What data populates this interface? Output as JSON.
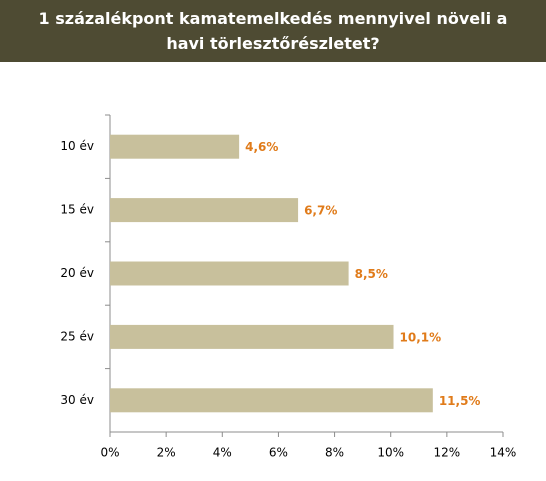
{
  "chart_data": {
    "type": "bar",
    "horizontal": true,
    "title": "1 százalékpont kamatemelkedés mennyivel növeli a havi törlesztőrészletet?",
    "categories": [
      "10 év",
      "15 év",
      "20 év",
      "25 év",
      "30 év"
    ],
    "values": [
      4.6,
      6.7,
      8.5,
      10.1,
      11.5
    ],
    "value_labels": [
      "4,6%",
      "6,7%",
      "8,5%",
      "10,1%",
      "11,5%"
    ],
    "color": "#c8c09c",
    "label_color": "#e07b1a",
    "xlim": [
      0,
      14
    ],
    "xticks": [
      {
        "value": 0,
        "label": "0%"
      },
      {
        "value": 2,
        "label": "2%"
      },
      {
        "value": 4,
        "label": "4%"
      },
      {
        "value": 6,
        "label": "6%"
      },
      {
        "value": 8,
        "label": "8%"
      },
      {
        "value": 10,
        "label": "10%"
      },
      {
        "value": 12,
        "label": "12%"
      },
      {
        "value": 14,
        "label": "14%"
      }
    ],
    "grid": false
  }
}
